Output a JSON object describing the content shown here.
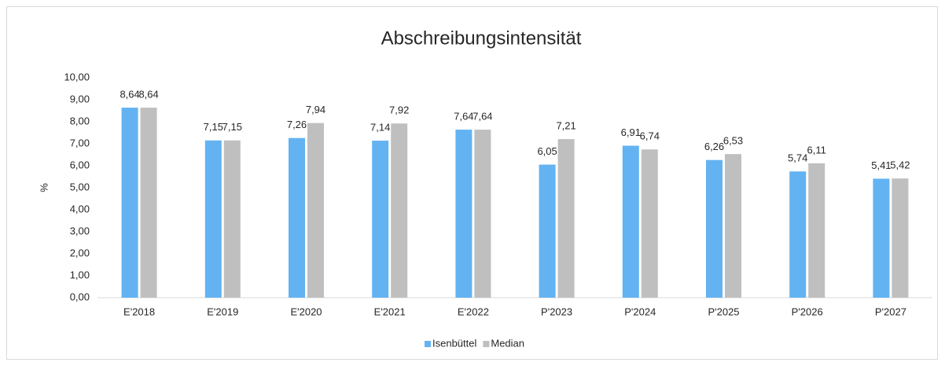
{
  "chart_data": {
    "type": "bar",
    "title": "Abschreibungsintensität",
    "y_label": "%",
    "categories": [
      "E'2018",
      "E'2019",
      "E'2020",
      "E'2021",
      "E'2022",
      "P'2023",
      "P'2024",
      "P'2025",
      "P'2026",
      "P'2027"
    ],
    "series": [
      {
        "name": "Isenbüttel",
        "color": "#63b3f2",
        "values": [
          8.64,
          7.15,
          7.26,
          7.14,
          7.64,
          6.05,
          6.91,
          6.26,
          5.74,
          5.41
        ],
        "value_labels": [
          "8,64",
          "7,15",
          "7,26",
          "7,14",
          "7,64",
          "6,05",
          "6,91",
          "6,26",
          "5,74",
          "5,41"
        ]
      },
      {
        "name": "Median",
        "color": "#bfbfbf",
        "values": [
          8.64,
          7.15,
          7.94,
          7.92,
          7.64,
          7.21,
          6.74,
          6.53,
          6.11,
          5.42
        ],
        "value_labels": [
          "8,64",
          "7,15",
          "7,94",
          "7,92",
          "7,64",
          "7,21",
          "6,74",
          "6,53",
          "6,11",
          "5,42"
        ]
      }
    ],
    "ylim": [
      0,
      10
    ],
    "yticks": [
      {
        "value": 0,
        "label": "0,00"
      },
      {
        "value": 1,
        "label": "1,00"
      },
      {
        "value": 2,
        "label": "2,00"
      },
      {
        "value": 3,
        "label": "3,00"
      },
      {
        "value": 4,
        "label": "4,00"
      },
      {
        "value": 5,
        "label": "5,00"
      },
      {
        "value": 6,
        "label": "6,00"
      },
      {
        "value": 7,
        "label": "7,00"
      },
      {
        "value": 8,
        "label": "8,00"
      },
      {
        "value": 9,
        "label": "9,00"
      },
      {
        "value": 10,
        "label": "10,00"
      }
    ],
    "grid": false,
    "legend": "bottom"
  }
}
